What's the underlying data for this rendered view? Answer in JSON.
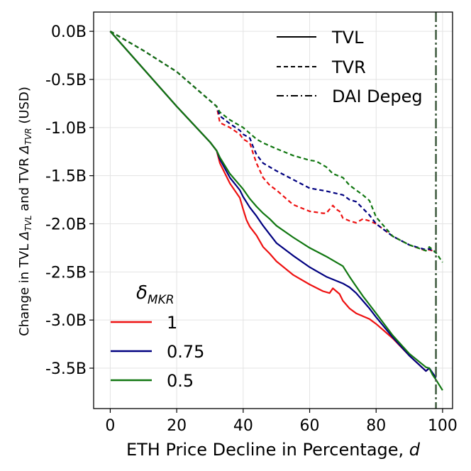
{
  "chart_data": {
    "type": "line",
    "title": "",
    "xlabel": {
      "prefix": "ETH Price Decline in Percentage, ",
      "var": "d"
    },
    "ylabel": {
      "p1": "Change in TVL ",
      "d1": "Δ",
      "s1": "TVL",
      "p2": " and TVR ",
      "d2": "Δ",
      "s2": "TVR",
      "p3": " (USD)"
    },
    "xlim": [
      -5,
      103
    ],
    "ylim": [
      -3.92,
      0.2
    ],
    "xticks": [
      0,
      20,
      40,
      60,
      80,
      100
    ],
    "xtick_labels": [
      "0",
      "20",
      "40",
      "60",
      "80",
      "100"
    ],
    "yticks": [
      0.0,
      -0.5,
      -1.0,
      -1.5,
      -2.0,
      -2.5,
      -3.0,
      -3.5
    ],
    "ytick_labels": [
      "0.0B",
      "-0.5B",
      "-1.0B",
      "-1.5B",
      "-2.0B",
      "-2.5B",
      "-3.0B",
      "-3.5B"
    ],
    "grid": true,
    "style_legend": [
      {
        "label": "TVL",
        "style": "solid"
      },
      {
        "label": "TVR",
        "style": "dashed"
      },
      {
        "label": "DAI Depeg",
        "style": "dashdot"
      }
    ],
    "color_legend_title": {
      "base": "δ",
      "sub": "MKR"
    },
    "depeg_x": 98,
    "series": [
      {
        "name": "1",
        "metric": "TVL",
        "color": "#ee1111",
        "x": [
          0,
          10,
          20,
          30,
          32,
          33,
          36,
          39,
          40,
          41,
          42,
          44,
          46,
          48,
          50,
          55,
          60,
          64,
          66,
          67,
          68,
          69,
          70,
          72,
          74,
          76,
          78,
          80,
          85,
          90,
          95,
          96,
          97,
          98
        ],
        "y": [
          0,
          -0.39,
          -0.78,
          -1.15,
          -1.24,
          -1.37,
          -1.58,
          -1.73,
          -1.85,
          -1.96,
          -2.03,
          -2.12,
          -2.24,
          -2.31,
          -2.39,
          -2.53,
          -2.63,
          -2.7,
          -2.72,
          -2.67,
          -2.7,
          -2.73,
          -2.8,
          -2.88,
          -2.93,
          -2.96,
          -2.99,
          -3.04,
          -3.19,
          -3.37,
          -3.53,
          -3.5,
          -3.56,
          -3.6
        ]
      },
      {
        "name": "0.75",
        "metric": "TVL",
        "color": "#000080",
        "x": [
          0,
          10,
          20,
          30,
          32,
          33,
          36,
          39,
          40,
          42,
          44,
          46,
          48,
          50,
          55,
          60,
          65,
          70,
          72,
          74,
          76,
          78,
          80,
          85,
          90,
          95,
          96,
          97,
          98
        ],
        "y": [
          0,
          -0.39,
          -0.78,
          -1.15,
          -1.24,
          -1.33,
          -1.52,
          -1.65,
          -1.72,
          -1.83,
          -1.92,
          -2.02,
          -2.11,
          -2.2,
          -2.33,
          -2.45,
          -2.55,
          -2.62,
          -2.66,
          -2.72,
          -2.8,
          -2.88,
          -2.97,
          -3.18,
          -3.37,
          -3.53,
          -3.5,
          -3.55,
          -3.6
        ]
      },
      {
        "name": "0.5",
        "metric": "TVL",
        "color": "#117711",
        "x": [
          0,
          10,
          20,
          30,
          32,
          33,
          36,
          39,
          40,
          42,
          44,
          46,
          48,
          50,
          55,
          60,
          65,
          70,
          72,
          74,
          76,
          78,
          80,
          85,
          90,
          95,
          96,
          97,
          98,
          100
        ],
        "y": [
          0,
          -0.39,
          -0.78,
          -1.15,
          -1.24,
          -1.31,
          -1.48,
          -1.6,
          -1.64,
          -1.74,
          -1.82,
          -1.89,
          -1.95,
          -2.02,
          -2.14,
          -2.25,
          -2.34,
          -2.44,
          -2.55,
          -2.65,
          -2.75,
          -2.84,
          -2.93,
          -3.16,
          -3.35,
          -3.49,
          -3.5,
          -3.57,
          -3.62,
          -3.73
        ]
      },
      {
        "name": "1",
        "metric": "TVR",
        "color": "#ee1111",
        "x": [
          0,
          10,
          20,
          30,
          32,
          33,
          36,
          39,
          40,
          42,
          43,
          44,
          46,
          48,
          50,
          55,
          60,
          64,
          65,
          66,
          67,
          68,
          69,
          70,
          72,
          74,
          76,
          78,
          80,
          85,
          90,
          95,
          96,
          97,
          98
        ],
        "y": [
          0,
          -0.2,
          -0.42,
          -0.72,
          -0.78,
          -0.95,
          -1.0,
          -1.07,
          -1.12,
          -1.16,
          -1.27,
          -1.37,
          -1.52,
          -1.6,
          -1.65,
          -1.8,
          -1.87,
          -1.89,
          -1.89,
          -1.85,
          -1.81,
          -1.85,
          -1.87,
          -1.94,
          -1.97,
          -1.99,
          -1.95,
          -1.97,
          -2.0,
          -2.13,
          -2.22,
          -2.28,
          -2.27,
          -2.28,
          -2.3
        ]
      },
      {
        "name": "0.75",
        "metric": "TVR",
        "color": "#000080",
        "x": [
          0,
          10,
          20,
          30,
          32,
          33,
          36,
          39,
          40,
          42,
          43,
          44,
          46,
          50,
          55,
          60,
          65,
          70,
          72,
          74,
          76,
          78,
          80,
          85,
          90,
          95,
          96,
          97,
          98
        ],
        "y": [
          0,
          -0.2,
          -0.42,
          -0.72,
          -0.78,
          -0.88,
          -0.96,
          -1.03,
          -1.07,
          -1.11,
          -1.2,
          -1.28,
          -1.37,
          -1.45,
          -1.54,
          -1.63,
          -1.66,
          -1.7,
          -1.75,
          -1.77,
          -1.84,
          -1.91,
          -2.0,
          -2.13,
          -2.22,
          -2.27,
          -2.26,
          -2.28,
          -2.3
        ]
      },
      {
        "name": "0.5",
        "metric": "TVR",
        "color": "#117711",
        "x": [
          0,
          10,
          20,
          30,
          32,
          33,
          36,
          39,
          40,
          42,
          44,
          46,
          50,
          55,
          60,
          62,
          65,
          67,
          70,
          72,
          74,
          76,
          78,
          80,
          85,
          90,
          95,
          96,
          97,
          98,
          100
        ],
        "y": [
          0,
          -0.2,
          -0.42,
          -0.72,
          -0.78,
          -0.84,
          -0.92,
          -0.98,
          -1.0,
          -1.06,
          -1.12,
          -1.16,
          -1.22,
          -1.29,
          -1.34,
          -1.35,
          -1.41,
          -1.48,
          -1.52,
          -1.6,
          -1.65,
          -1.7,
          -1.76,
          -1.93,
          -2.13,
          -2.22,
          -2.28,
          -2.24,
          -2.27,
          -2.3,
          -2.4
        ]
      }
    ]
  }
}
